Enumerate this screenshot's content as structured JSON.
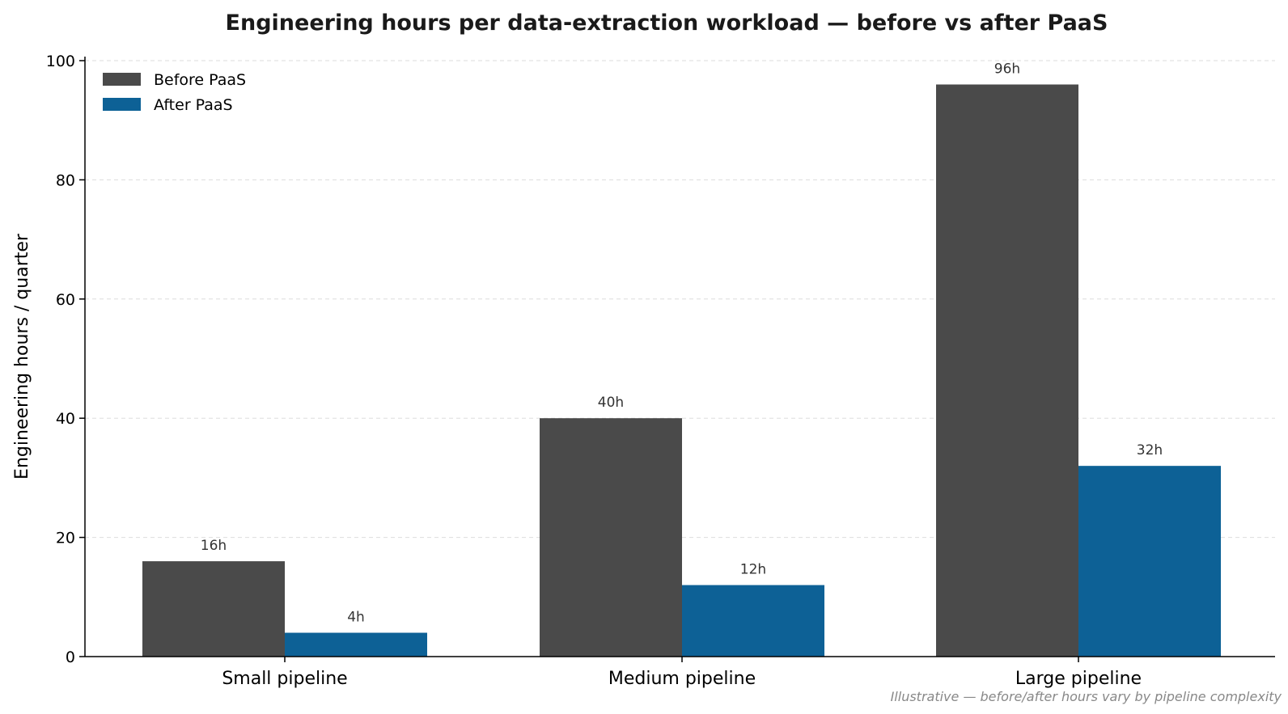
{
  "chart_data": {
    "type": "bar",
    "title": "Engineering hours per data-extraction workload — before vs after PaaS",
    "ylabel": "Engineering hours / quarter",
    "xlabel": "",
    "ylim": [
      0,
      100
    ],
    "yticks": [
      0,
      20,
      40,
      60,
      80,
      100
    ],
    "grid": "y-dashed",
    "legend_position": "top-left",
    "categories": [
      "Small pipeline",
      "Medium pipeline",
      "Large pipeline"
    ],
    "series": [
      {
        "name": "Before PaaS",
        "color": "#4a4a4a",
        "values": [
          16,
          40,
          96
        ],
        "labels": [
          "16h",
          "40h",
          "96h"
        ]
      },
      {
        "name": "After PaaS",
        "color": "#0d6196",
        "values": [
          4,
          12,
          32
        ],
        "labels": [
          "4h",
          "12h",
          "32h"
        ]
      }
    ],
    "annotation": "Illustrative — before/after hours vary by pipeline complexity"
  }
}
